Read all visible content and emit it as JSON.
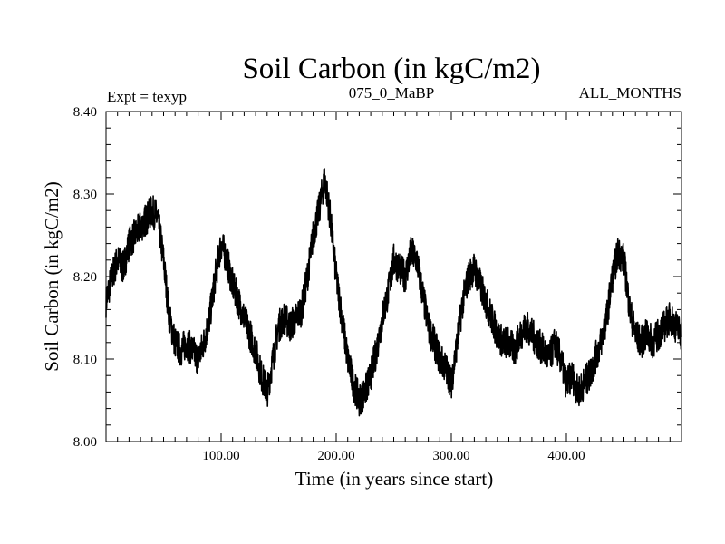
{
  "chart_data": {
    "type": "line",
    "title": "Soil Carbon (in kgC/m2)",
    "subtitle_left": "Expt = texyp",
    "subtitle_center": "075_0_MaBP",
    "subtitle_right": "ALL_MONTHS",
    "xlabel": "Time (in years since start)",
    "ylabel": "Soil Carbon (in kgC/m2)",
    "xlim": [
      0,
      500
    ],
    "ylim": [
      8.0,
      8.4
    ],
    "x_ticks": [
      100,
      200,
      300,
      400
    ],
    "x_tick_labels": [
      "100.00",
      "200.00",
      "300.00",
      "400.00"
    ],
    "y_ticks": [
      8.0,
      8.1,
      8.2,
      8.3,
      8.4
    ],
    "y_tick_labels": [
      "8.00",
      "8.10",
      "8.20",
      "8.30",
      "8.40"
    ],
    "grid": false,
    "line_color": "#000000",
    "series": [
      {
        "x": [
          0,
          5,
          10,
          15,
          20,
          25,
          30,
          35,
          40,
          45,
          50,
          55,
          60,
          65,
          70,
          75,
          80,
          85,
          90,
          95,
          100,
          105,
          110,
          115,
          120,
          125,
          130,
          135,
          140,
          145,
          150,
          155,
          160,
          165,
          170,
          175,
          180,
          185,
          190,
          195,
          200,
          205,
          210,
          215,
          220,
          225,
          230,
          235,
          240,
          245,
          250,
          255,
          260,
          265,
          270,
          275,
          280,
          285,
          290,
          295,
          300,
          305,
          310,
          315,
          320,
          325,
          330,
          335,
          340,
          345,
          350,
          355,
          360,
          365,
          370,
          375,
          380,
          385,
          390,
          395,
          400,
          405,
          410,
          415,
          420,
          425,
          430,
          435,
          440,
          445,
          450,
          455,
          460,
          465,
          470,
          475,
          480,
          485,
          490,
          495,
          500
        ],
        "y": [
          8.17,
          8.2,
          8.22,
          8.21,
          8.24,
          8.25,
          8.26,
          8.27,
          8.28,
          8.27,
          8.22,
          8.15,
          8.12,
          8.11,
          8.12,
          8.11,
          8.1,
          8.12,
          8.15,
          8.2,
          8.24,
          8.22,
          8.19,
          8.17,
          8.15,
          8.13,
          8.11,
          8.08,
          8.06,
          8.1,
          8.14,
          8.15,
          8.14,
          8.15,
          8.16,
          8.2,
          8.25,
          8.28,
          8.32,
          8.27,
          8.2,
          8.15,
          8.1,
          8.07,
          8.05,
          8.06,
          8.08,
          8.11,
          8.15,
          8.18,
          8.22,
          8.21,
          8.2,
          8.23,
          8.22,
          8.18,
          8.14,
          8.12,
          8.1,
          8.09,
          8.07,
          8.12,
          8.17,
          8.2,
          8.21,
          8.19,
          8.17,
          8.15,
          8.13,
          8.12,
          8.12,
          8.11,
          8.13,
          8.14,
          8.13,
          8.12,
          8.11,
          8.1,
          8.12,
          8.1,
          8.07,
          8.08,
          8.06,
          8.07,
          8.08,
          8.1,
          8.12,
          8.15,
          8.2,
          8.23,
          8.22,
          8.16,
          8.13,
          8.12,
          8.13,
          8.12,
          8.13,
          8.14,
          8.15,
          8.14,
          8.13
        ]
      }
    ]
  }
}
